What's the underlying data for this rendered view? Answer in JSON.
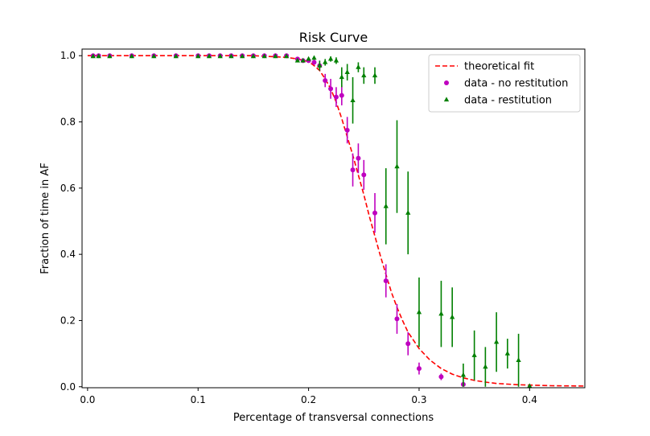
{
  "chart_data": {
    "type": "scatter",
    "title": "Risk Curve",
    "xlabel": "Percentage of transversal connections",
    "ylabel": "Fraction of time in AF",
    "xlim": [
      -0.005,
      0.45
    ],
    "ylim": [
      -0.003,
      1.02
    ],
    "xticks": [
      0.0,
      0.1,
      0.2,
      0.3,
      0.4
    ],
    "xtick_labels": [
      "0.0",
      "0.1",
      "0.2",
      "0.3",
      "0.4"
    ],
    "yticks": [
      0.0,
      0.2,
      0.4,
      0.6,
      0.8,
      1.0
    ],
    "ytick_labels": [
      "0.0",
      "0.2",
      "0.4",
      "0.6",
      "0.8",
      "1.0"
    ],
    "legend_position": "top-right",
    "series": [
      {
        "name": "theoretical fit",
        "kind": "line",
        "style": "dashed",
        "color": "#ff0000",
        "x": [
          0.0,
          0.05,
          0.1,
          0.15,
          0.18,
          0.19,
          0.2,
          0.205,
          0.21,
          0.215,
          0.22,
          0.225,
          0.23,
          0.235,
          0.24,
          0.245,
          0.25,
          0.255,
          0.26,
          0.265,
          0.27,
          0.275,
          0.28,
          0.285,
          0.29,
          0.3,
          0.31,
          0.32,
          0.33,
          0.34,
          0.35,
          0.36,
          0.37,
          0.38,
          0.39,
          0.4,
          0.42,
          0.45
        ],
        "y": [
          1.0,
          1.0,
          1.0,
          1.0,
          0.995,
          0.99,
          0.982,
          0.97,
          0.955,
          0.93,
          0.9,
          0.86,
          0.81,
          0.755,
          0.7,
          0.64,
          0.58,
          0.515,
          0.455,
          0.395,
          0.34,
          0.285,
          0.24,
          0.2,
          0.165,
          0.115,
          0.08,
          0.055,
          0.038,
          0.027,
          0.019,
          0.014,
          0.01,
          0.008,
          0.006,
          0.005,
          0.003,
          0.002
        ]
      },
      {
        "name": "data - no restitution",
        "kind": "marker",
        "marker": "circle",
        "color": "#bf00bf",
        "x": [
          0.005,
          0.01,
          0.02,
          0.04,
          0.06,
          0.08,
          0.1,
          0.11,
          0.12,
          0.13,
          0.14,
          0.15,
          0.16,
          0.17,
          0.18,
          0.19,
          0.195,
          0.2,
          0.205,
          0.21,
          0.215,
          0.22,
          0.225,
          0.23,
          0.235,
          0.24,
          0.245,
          0.25,
          0.26,
          0.27,
          0.28,
          0.29,
          0.3,
          0.32,
          0.34
        ],
        "y": [
          1.0,
          1.0,
          1.0,
          1.0,
          1.0,
          1.0,
          1.0,
          1.0,
          1.0,
          1.0,
          1.0,
          1.0,
          1.0,
          1.0,
          1.0,
          0.99,
          0.985,
          0.985,
          0.98,
          0.97,
          0.925,
          0.9,
          0.875,
          0.88,
          0.775,
          0.655,
          0.69,
          0.64,
          0.525,
          0.32,
          0.205,
          0.13,
          0.055,
          0.03,
          0.007
        ],
        "err": [
          0,
          0,
          0,
          0,
          0,
          0,
          0,
          0,
          0,
          0,
          0,
          0,
          0,
          0,
          0,
          0.005,
          0.005,
          0.005,
          0.008,
          0.015,
          0.02,
          0.03,
          0.03,
          0.03,
          0.04,
          0.05,
          0.045,
          0.045,
          0.06,
          0.05,
          0.045,
          0.035,
          0.018,
          0.01,
          0.006
        ]
      },
      {
        "name": "data - restitution",
        "kind": "marker",
        "marker": "triangle",
        "color": "#008000",
        "x": [
          0.005,
          0.01,
          0.02,
          0.04,
          0.06,
          0.08,
          0.1,
          0.11,
          0.12,
          0.13,
          0.14,
          0.15,
          0.16,
          0.17,
          0.18,
          0.19,
          0.195,
          0.2,
          0.205,
          0.21,
          0.215,
          0.22,
          0.225,
          0.23,
          0.235,
          0.24,
          0.245,
          0.25,
          0.26,
          0.27,
          0.28,
          0.29,
          0.3,
          0.32,
          0.33,
          0.34,
          0.35,
          0.36,
          0.37,
          0.38,
          0.39,
          0.4
        ],
        "y": [
          0.998,
          0.998,
          0.998,
          0.998,
          0.998,
          0.998,
          0.998,
          0.998,
          0.998,
          0.998,
          0.998,
          0.998,
          0.998,
          0.998,
          0.998,
          0.985,
          0.985,
          0.99,
          0.993,
          0.97,
          0.98,
          0.99,
          0.985,
          0.935,
          0.95,
          0.865,
          0.965,
          0.94,
          0.94,
          0.545,
          0.665,
          0.525,
          0.225,
          0.22,
          0.21,
          0.035,
          0.095,
          0.06,
          0.135,
          0.1,
          0.08,
          0.002
        ],
        "err": [
          0,
          0,
          0,
          0,
          0,
          0,
          0,
          0,
          0,
          0,
          0,
          0,
          0,
          0,
          0,
          0.005,
          0.005,
          0.005,
          0.005,
          0.015,
          0.01,
          0.008,
          0.01,
          0.03,
          0.025,
          0.07,
          0.015,
          0.025,
          0.025,
          0.115,
          0.14,
          0.125,
          0.105,
          0.1,
          0.09,
          0.035,
          0.075,
          0.06,
          0.09,
          0.045,
          0.08,
          0.004
        ]
      }
    ]
  }
}
